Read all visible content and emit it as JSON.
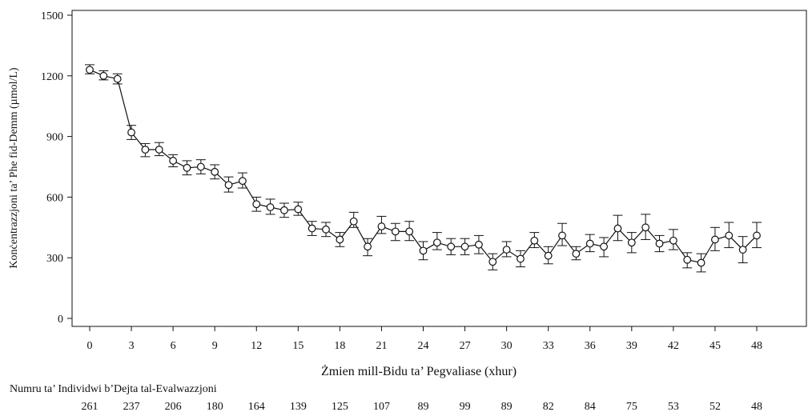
{
  "chart_data": {
    "type": "line",
    "xlabel": "Żmien mill-Bidu ta’ Pegvaliase (xhur)",
    "ylabel": "Konċentrazzjoni ta’ Phe fid-Demm (µmol/L)",
    "xlim": [
      0,
      48
    ],
    "ylim": [
      0,
      1500
    ],
    "x_ticks": [
      "0",
      "3",
      "6",
      "9",
      "12",
      "15",
      "18",
      "21",
      "24",
      "27",
      "30",
      "33",
      "36",
      "39",
      "42",
      "45",
      "48"
    ],
    "y_ticks": [
      "0",
      "300",
      "600",
      "900",
      "1200",
      "1500"
    ],
    "grid": false,
    "series": [
      {
        "x": [
          0,
          1,
          2,
          3,
          4,
          5,
          6,
          7,
          8,
          9,
          10,
          11,
          12,
          13,
          14,
          15,
          16,
          17,
          18,
          19,
          20,
          21,
          22,
          23,
          24,
          25,
          26,
          27,
          28,
          29,
          30,
          31,
          32,
          33,
          34,
          35,
          36,
          37,
          38,
          39,
          40,
          41,
          42,
          43,
          44,
          45,
          46,
          47,
          48
        ],
        "mean": [
          1230,
          1200,
          1185,
          920,
          835,
          835,
          780,
          745,
          750,
          725,
          660,
          680,
          565,
          550,
          535,
          540,
          445,
          440,
          390,
          480,
          355,
          455,
          430,
          430,
          335,
          375,
          355,
          355,
          365,
          280,
          340,
          295,
          385,
          310,
          410,
          320,
          370,
          355,
          445,
          375,
          450,
          370,
          385,
          290,
          275,
          390,
          410,
          340,
          410
        ],
        "lower": [
          1210,
          1180,
          1160,
          885,
          800,
          805,
          750,
          710,
          715,
          690,
          625,
          645,
          530,
          515,
          500,
          510,
          410,
          405,
          355,
          450,
          310,
          420,
          385,
          385,
          290,
          340,
          315,
          315,
          320,
          240,
          305,
          255,
          350,
          270,
          360,
          290,
          330,
          305,
          385,
          325,
          390,
          330,
          340,
          250,
          230,
          335,
          350,
          275,
          350
        ],
        "upper": [
          1255,
          1225,
          1210,
          955,
          865,
          870,
          810,
          780,
          785,
          760,
          700,
          720,
          600,
          590,
          570,
          575,
          480,
          475,
          425,
          525,
          395,
          505,
          470,
          480,
          380,
          425,
          395,
          395,
          410,
          320,
          380,
          335,
          425,
          355,
          470,
          355,
          415,
          400,
          510,
          425,
          515,
          410,
          440,
          325,
          320,
          450,
          475,
          405,
          475
        ]
      }
    ],
    "table": {
      "title": "Numru ta’ Individwi b’Dejta tal-Evalwazzjoni",
      "counts": [
        "261",
        "237",
        "206",
        "180",
        "164",
        "139",
        "125",
        "107",
        "89",
        "99",
        "89",
        "82",
        "84",
        "75",
        "53",
        "52",
        "48"
      ]
    }
  }
}
